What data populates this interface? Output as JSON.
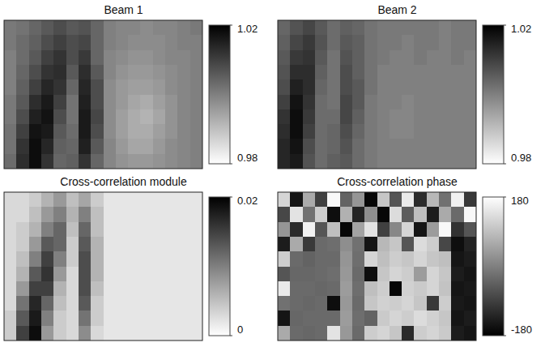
{
  "chart_data": [
    {
      "type": "heatmap",
      "title": "Beam 1",
      "tick_labels": false,
      "colorbar": {
        "range": [
          0.98,
          1.02
        ],
        "ticks": [
          1.02,
          0.98
        ],
        "colors": [
          "#ffffff",
          "#000000"
        ]
      },
      "cells": [
        [
          1.001,
          1.002,
          1.004,
          1.006,
          1.008,
          1.006,
          1.007,
          1.004,
          1.0,
          0.999,
          0.999,
          0.998,
          0.999,
          0.999,
          1.0,
          1.001
        ],
        [
          1.001,
          1.003,
          1.005,
          1.008,
          1.01,
          1.008,
          1.009,
          1.004,
          1.0,
          0.999,
          0.998,
          0.998,
          0.998,
          0.999,
          1.0,
          1.0
        ],
        [
          1.0,
          1.003,
          1.006,
          1.01,
          1.012,
          1.008,
          1.011,
          1.004,
          0.999,
          0.998,
          0.997,
          0.997,
          0.998,
          0.999,
          0.999,
          1.0
        ],
        [
          1.0,
          1.004,
          1.008,
          1.012,
          1.013,
          1.006,
          1.013,
          1.006,
          0.999,
          0.997,
          0.996,
          0.996,
          0.997,
          0.998,
          0.999,
          1.0
        ],
        [
          1.0,
          1.005,
          1.01,
          1.014,
          1.012,
          1.004,
          1.014,
          1.008,
          0.998,
          0.996,
          0.995,
          0.995,
          0.996,
          0.998,
          0.999,
          1.0
        ],
        [
          1.001,
          1.006,
          1.013,
          1.016,
          1.01,
          1.002,
          1.015,
          1.008,
          0.998,
          0.996,
          0.994,
          0.993,
          0.995,
          0.997,
          0.999,
          1.0
        ],
        [
          1.001,
          1.008,
          1.015,
          1.017,
          1.008,
          1.002,
          1.016,
          1.009,
          0.998,
          0.995,
          0.993,
          0.992,
          0.994,
          0.997,
          0.999,
          1.0
        ],
        [
          1.002,
          1.01,
          1.017,
          1.016,
          1.006,
          1.003,
          1.016,
          1.008,
          0.998,
          0.995,
          0.993,
          0.993,
          0.995,
          0.997,
          0.999,
          1.0
        ],
        [
          1.002,
          1.012,
          1.018,
          1.014,
          1.005,
          1.004,
          1.015,
          1.006,
          0.999,
          0.996,
          0.994,
          0.994,
          0.996,
          0.998,
          0.999,
          1.0
        ],
        [
          1.003,
          1.013,
          1.018,
          1.012,
          1.004,
          1.005,
          1.012,
          1.004,
          0.999,
          0.997,
          0.996,
          0.996,
          0.997,
          0.998,
          0.999,
          1.0
        ]
      ]
    },
    {
      "type": "heatmap",
      "title": "Beam 2",
      "tick_labels": false,
      "colorbar": {
        "range": [
          0.98,
          1.02
        ],
        "ticks": [
          1.02,
          0.98
        ],
        "colors": [
          "#ffffff",
          "#000000"
        ]
      },
      "cells": [
        [
          1.004,
          1.007,
          1.009,
          1.006,
          1.003,
          1.005,
          1.004,
          1.002,
          1.001,
          1.001,
          1.001,
          1.001,
          1.001,
          1.0,
          1.001,
          1.001
        ],
        [
          1.005,
          1.009,
          1.011,
          1.007,
          1.003,
          1.006,
          1.005,
          1.002,
          1.001,
          1.001,
          1.0,
          1.001,
          1.001,
          1.0,
          1.001,
          1.001
        ],
        [
          1.006,
          1.011,
          1.012,
          1.006,
          1.002,
          1.007,
          1.005,
          1.002,
          1.001,
          1.0,
          1.0,
          1.001,
          1.0,
          1.0,
          1.001,
          1.0
        ],
        [
          1.007,
          1.013,
          1.013,
          1.005,
          1.002,
          1.008,
          1.005,
          1.002,
          1.0,
          1.0,
          1.0,
          1.0,
          1.0,
          1.0,
          1.0,
          1.0
        ],
        [
          1.008,
          1.015,
          1.013,
          1.004,
          1.002,
          1.008,
          1.006,
          1.002,
          1.0,
          1.0,
          1.0,
          1.0,
          1.0,
          1.0,
          1.0,
          1.0
        ],
        [
          1.01,
          1.017,
          1.012,
          1.003,
          1.002,
          1.009,
          1.006,
          1.001,
          1.0,
          1.0,
          0.999,
          1.0,
          1.0,
          1.0,
          1.0,
          1.0
        ],
        [
          1.012,
          1.018,
          1.011,
          1.003,
          1.003,
          1.009,
          1.005,
          1.001,
          1.0,
          0.999,
          0.999,
          1.0,
          1.0,
          1.0,
          1.0,
          1.0
        ],
        [
          1.013,
          1.018,
          1.01,
          1.003,
          1.004,
          1.008,
          1.004,
          1.001,
          1.0,
          0.999,
          0.999,
          1.0,
          1.0,
          1.0,
          1.0,
          1.0
        ],
        [
          1.014,
          1.017,
          1.008,
          1.003,
          1.004,
          1.007,
          1.003,
          1.001,
          1.0,
          1.0,
          1.0,
          1.0,
          1.0,
          1.0,
          1.0,
          1.0
        ],
        [
          1.014,
          1.016,
          1.007,
          1.003,
          1.005,
          1.006,
          1.003,
          1.001,
          1.0,
          1.0,
          1.0,
          1.0,
          1.0,
          1.0,
          1.0,
          1.0
        ]
      ]
    },
    {
      "type": "heatmap",
      "title": "Cross-correlation module",
      "tick_labels": false,
      "colorbar": {
        "range": [
          0,
          0.02
        ],
        "ticks": [
          0.02,
          0
        ],
        "colors": [
          "#ffffff",
          "#000000"
        ]
      },
      "cells": [
        [
          0.003,
          0.003,
          0.004,
          0.006,
          0.008,
          0.005,
          0.007,
          0.004,
          0.002,
          0.002,
          0.002,
          0.002,
          0.002,
          0.002,
          0.002,
          0.002
        ],
        [
          0.003,
          0.003,
          0.005,
          0.008,
          0.01,
          0.006,
          0.01,
          0.005,
          0.002,
          0.002,
          0.002,
          0.002,
          0.002,
          0.002,
          0.002,
          0.002
        ],
        [
          0.003,
          0.004,
          0.006,
          0.01,
          0.012,
          0.005,
          0.012,
          0.005,
          0.002,
          0.002,
          0.002,
          0.002,
          0.002,
          0.002,
          0.002,
          0.002
        ],
        [
          0.003,
          0.004,
          0.008,
          0.013,
          0.012,
          0.004,
          0.013,
          0.006,
          0.002,
          0.002,
          0.002,
          0.002,
          0.002,
          0.002,
          0.002,
          0.002
        ],
        [
          0.003,
          0.005,
          0.01,
          0.015,
          0.01,
          0.004,
          0.014,
          0.006,
          0.002,
          0.002,
          0.002,
          0.002,
          0.002,
          0.002,
          0.002,
          0.002
        ],
        [
          0.003,
          0.006,
          0.013,
          0.016,
          0.008,
          0.003,
          0.014,
          0.006,
          0.002,
          0.002,
          0.002,
          0.002,
          0.002,
          0.002,
          0.002,
          0.002
        ],
        [
          0.003,
          0.008,
          0.015,
          0.015,
          0.006,
          0.003,
          0.014,
          0.005,
          0.002,
          0.002,
          0.002,
          0.002,
          0.002,
          0.002,
          0.002,
          0.002
        ],
        [
          0.003,
          0.011,
          0.017,
          0.012,
          0.005,
          0.003,
          0.013,
          0.004,
          0.002,
          0.002,
          0.002,
          0.002,
          0.002,
          0.002,
          0.002,
          0.002
        ],
        [
          0.004,
          0.013,
          0.018,
          0.01,
          0.004,
          0.003,
          0.011,
          0.004,
          0.002,
          0.002,
          0.002,
          0.002,
          0.002,
          0.002,
          0.002,
          0.002
        ],
        [
          0.004,
          0.015,
          0.019,
          0.008,
          0.004,
          0.003,
          0.009,
          0.003,
          0.002,
          0.002,
          0.002,
          0.002,
          0.002,
          0.002,
          0.002,
          0.002
        ]
      ]
    },
    {
      "type": "heatmap",
      "title": "Cross-correlation phase",
      "tick_labels": false,
      "colorbar": {
        "range": [
          -180,
          180
        ],
        "ticks": [
          180,
          -180
        ],
        "colors": [
          "#000000",
          "#ffffff"
        ]
      },
      "cells": [
        [
          120,
          -150,
          60,
          -90,
          170,
          -40,
          30,
          -170,
          100,
          -60,
          150,
          -120,
          80,
          -20,
          160,
          -100
        ],
        [
          -80,
          140,
          -20,
          110,
          -160,
          70,
          -130,
          20,
          -170,
          130,
          -50,
          90,
          -140,
          60,
          -30,
          170
        ],
        [
          30,
          -120,
          160,
          -60,
          90,
          -170,
          50,
          140,
          -90,
          10,
          120,
          -150,
          40,
          170,
          -110,
          -60
        ],
        [
          -140,
          60,
          -100,
          -30,
          -25,
          20,
          -20,
          -150,
          80,
          100,
          -60,
          130,
          110,
          -80,
          -160,
          -130
        ],
        [
          110,
          -30,
          -40,
          -30,
          -30,
          30,
          -25,
          120,
          90,
          110,
          100,
          120,
          100,
          90,
          -150,
          -140
        ],
        [
          -60,
          -35,
          -35,
          -30,
          -25,
          35,
          -30,
          -160,
          100,
          120,
          110,
          40,
          120,
          100,
          -140,
          -150
        ],
        [
          150,
          -30,
          -30,
          -35,
          -30,
          40,
          -25,
          90,
          110,
          -170,
          115,
          105,
          120,
          95,
          -150,
          -145
        ],
        [
          -20,
          -30,
          -35,
          -30,
          -160,
          35,
          -30,
          100,
          115,
          110,
          120,
          100,
          -100,
          110,
          -145,
          -150
        ],
        [
          -150,
          -35,
          -30,
          -30,
          -30,
          40,
          -25,
          -40,
          105,
          120,
          110,
          130,
          115,
          100,
          -150,
          -140
        ],
        [
          60,
          -30,
          -35,
          -30,
          140,
          35,
          -30,
          110,
          120,
          100,
          -120,
          110,
          120,
          105,
          -140,
          -150
        ]
      ]
    }
  ]
}
